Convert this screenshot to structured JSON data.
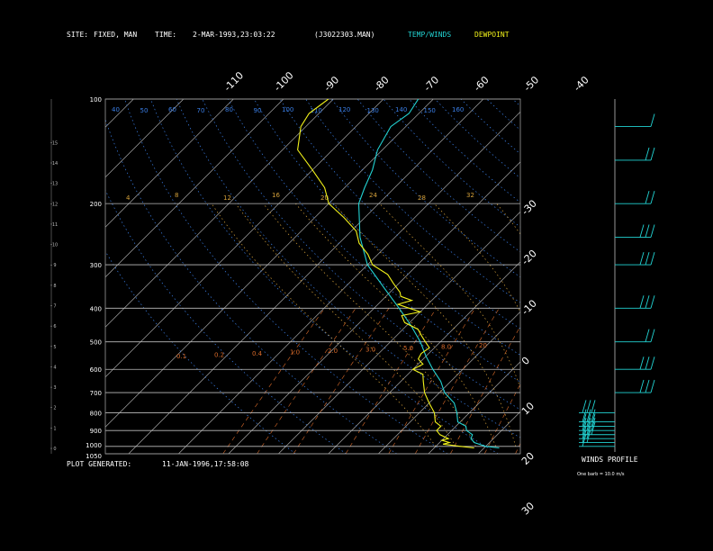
{
  "header": {
    "site_label": "SITE:",
    "site_value": "FIXED, MAN",
    "time_label": "TIME:",
    "time_value": "2-MAR-1993,23:03:22",
    "file": "(J3022303.MAN)",
    "legend_temp": "TEMP/WINDS",
    "legend_dew": "DEWPOINT"
  },
  "footer": {
    "generated_label": "PLOT GENERATED:",
    "generated_value": "11-JAN-1996,17:58:08",
    "winds_label": "WINDS PROFILE",
    "winds_scale": "One barb = 10.0 m/s"
  },
  "colors": {
    "temp": "#22d3d3",
    "dewpoint": "#f2f21a",
    "isobar": "#bdbdbd",
    "isotherm": "#bdbdbd",
    "dry_adiabat": "#3a7ee6",
    "moist_adiabat": "#d4a03a",
    "mixing_ratio": "#d86a2a",
    "text": "#ffffff"
  },
  "chart_data": {
    "type": "line",
    "title": "",
    "xlabel": "",
    "ylabel": "",
    "pressure_axis": {
      "scale": "log",
      "range_hPa": [
        1050,
        100
      ],
      "ticks": [
        "100",
        "200",
        "300",
        "400",
        "500",
        "600",
        "700",
        "800",
        "900",
        "1000",
        "1050"
      ],
      "isobars": [
        100,
        200,
        300,
        400,
        500,
        600,
        700,
        800,
        900,
        1000,
        1050
      ]
    },
    "height_axis": {
      "unit": "km",
      "ticks": [
        "0",
        "1",
        "2",
        "3",
        "4",
        "5",
        "6",
        "7",
        "8",
        "9",
        "10",
        "11",
        "12",
        "13",
        "14",
        "15"
      ]
    },
    "isotherm_labels_top": [
      "-110",
      "-100",
      "-90",
      "-80",
      "-70",
      "-60",
      "-50",
      "-40"
    ],
    "isotherm_labels_right": [
      "-30",
      "-20",
      "-10",
      "0",
      "10",
      "20",
      "30"
    ],
    "dry_adiabat_labels": [
      "40",
      "50",
      "60",
      "70",
      "80",
      "90",
      "100",
      "110",
      "120",
      "130",
      "140",
      "150",
      "160"
    ],
    "mixing_ratio_labels": [
      "0.1",
      "0.2",
      "0.4",
      "1.0",
      "2.0",
      "3.0",
      "5.0",
      "8.0",
      "20"
    ],
    "moist_adiabat_labels": [
      "4",
      "8",
      "12",
      "16",
      "20",
      "24",
      "28",
      "32"
    ],
    "series": [
      {
        "name": "TEMP/WINDS",
        "points": [
          {
            "p": 1010,
            "t": 13.0
          },
          {
            "p": 1000,
            "t": 10.0
          },
          {
            "p": 975,
            "t": 7.0
          },
          {
            "p": 950,
            "t": 5.5
          },
          {
            "p": 925,
            "t": 5.0
          },
          {
            "p": 900,
            "t": 3.0
          },
          {
            "p": 875,
            "t": 2.0
          },
          {
            "p": 850,
            "t": -0.5
          },
          {
            "p": 800,
            "t": -2.5
          },
          {
            "p": 750,
            "t": -5.0
          },
          {
            "p": 700,
            "t": -9.0
          },
          {
            "p": 650,
            "t": -12.0
          },
          {
            "p": 600,
            "t": -16.0
          },
          {
            "p": 550,
            "t": -20.0
          },
          {
            "p": 500,
            "t": -24.0
          },
          {
            "p": 450,
            "t": -29.0
          },
          {
            "p": 400,
            "t": -35.0
          },
          {
            "p": 350,
            "t": -42.0
          },
          {
            "p": 300,
            "t": -50.0
          },
          {
            "p": 250,
            "t": -57.0
          },
          {
            "p": 200,
            "t": -64.0
          },
          {
            "p": 180,
            "t": -66.0
          },
          {
            "p": 160,
            "t": -68.0
          },
          {
            "p": 140,
            "t": -71.0
          },
          {
            "p": 120,
            "t": -73.0
          },
          {
            "p": 110,
            "t": -72.0
          },
          {
            "p": 100,
            "t": -73.0
          }
        ]
      },
      {
        "name": "DEWPOINT",
        "points": [
          {
            "p": 1010,
            "t": 8.0
          },
          {
            "p": 1000,
            "t": 5.0
          },
          {
            "p": 985,
            "t": 1.0
          },
          {
            "p": 975,
            "t": 2.0
          },
          {
            "p": 960,
            "t": 0.0
          },
          {
            "p": 950,
            "t": 1.0
          },
          {
            "p": 925,
            "t": -1.5
          },
          {
            "p": 900,
            "t": -3.0
          },
          {
            "p": 875,
            "t": -3.0
          },
          {
            "p": 850,
            "t": -5.0
          },
          {
            "p": 800,
            "t": -7.0
          },
          {
            "p": 750,
            "t": -10.0
          },
          {
            "p": 700,
            "t": -13.0
          },
          {
            "p": 650,
            "t": -15.5
          },
          {
            "p": 620,
            "t": -17.0
          },
          {
            "p": 600,
            "t": -20.0
          },
          {
            "p": 580,
            "t": -19.0
          },
          {
            "p": 560,
            "t": -21.0
          },
          {
            "p": 540,
            "t": -21.5
          },
          {
            "p": 520,
            "t": -21.0
          },
          {
            "p": 500,
            "t": -23.0
          },
          {
            "p": 480,
            "t": -25.0
          },
          {
            "p": 460,
            "t": -27.0
          },
          {
            "p": 440,
            "t": -31.0
          },
          {
            "p": 420,
            "t": -33.0
          },
          {
            "p": 410,
            "t": -30.0
          },
          {
            "p": 400,
            "t": -33.0
          },
          {
            "p": 390,
            "t": -36.0
          },
          {
            "p": 380,
            "t": -34.0
          },
          {
            "p": 370,
            "t": -37.0
          },
          {
            "p": 360,
            "t": -38.0
          },
          {
            "p": 340,
            "t": -41.0
          },
          {
            "p": 320,
            "t": -44.0
          },
          {
            "p": 300,
            "t": -49.0
          },
          {
            "p": 280,
            "t": -52.0
          },
          {
            "p": 260,
            "t": -56.0
          },
          {
            "p": 240,
            "t": -59.0
          },
          {
            "p": 220,
            "t": -64.0
          },
          {
            "p": 200,
            "t": -70.0
          },
          {
            "p": 180,
            "t": -74.0
          },
          {
            "p": 160,
            "t": -80.0
          },
          {
            "p": 140,
            "t": -87.0
          },
          {
            "p": 120,
            "t": -91.0
          },
          {
            "p": 110,
            "t": -92.0
          },
          {
            "p": 100,
            "t": -91.0
          }
        ]
      }
    ],
    "winds": [
      {
        "p": 1000,
        "speed_barbs": 1
      },
      {
        "p": 975,
        "speed_barbs": 2
      },
      {
        "p": 950,
        "speed_barbs": 2
      },
      {
        "p": 925,
        "speed_barbs": 3
      },
      {
        "p": 900,
        "speed_barbs": 3
      },
      {
        "p": 875,
        "speed_barbs": 3
      },
      {
        "p": 850,
        "speed_barbs": 3
      },
      {
        "p": 800,
        "speed_barbs": 3
      },
      {
        "p": 700,
        "speed_barbs": 3
      },
      {
        "p": 600,
        "speed_barbs": 3
      },
      {
        "p": 500,
        "speed_barbs": 2
      },
      {
        "p": 400,
        "speed_barbs": 3
      },
      {
        "p": 300,
        "speed_barbs": 3
      },
      {
        "p": 250,
        "speed_barbs": 3
      },
      {
        "p": 200,
        "speed_barbs": 2
      },
      {
        "p": 150,
        "speed_barbs": 2
      },
      {
        "p": 120,
        "speed_barbs": 1
      }
    ]
  }
}
